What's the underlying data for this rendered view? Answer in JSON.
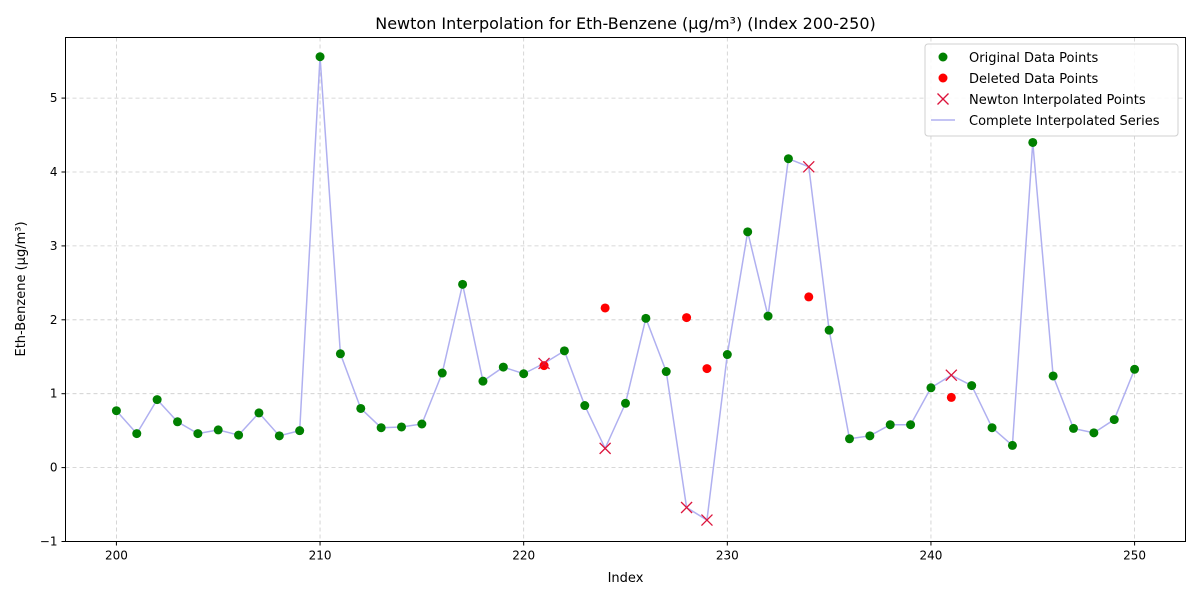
{
  "chart_data": {
    "type": "line",
    "title": "Newton Interpolation for Eth-Benzene (μg/m³) (Index 200-250)",
    "xlabel": "Index",
    "ylabel": "Eth-Benzene (μg/m³)",
    "xlim": [
      197.5,
      252.5
    ],
    "ylim": [
      -1.0,
      5.82
    ],
    "xticks": [
      200,
      210,
      220,
      230,
      240,
      250
    ],
    "yticks": [
      -1,
      0,
      1,
      2,
      3,
      4,
      5
    ],
    "grid": true,
    "legend_position": "top-right",
    "legend": [
      {
        "label": "Original Data Points",
        "marker": "circle",
        "color": "#008000"
      },
      {
        "label": "Deleted Data Points",
        "marker": "circle",
        "color": "#ff0000"
      },
      {
        "label": "Newton Interpolated Points",
        "marker": "x",
        "color": "#dc143c"
      },
      {
        "label": "Complete Interpolated Series",
        "marker": "line",
        "color": "#b0b0f0"
      }
    ],
    "series": [
      {
        "name": "Original Data Points",
        "points": [
          [
            200,
            0.77
          ],
          [
            201,
            0.46
          ],
          [
            202,
            0.92
          ],
          [
            203,
            0.62
          ],
          [
            204,
            0.46
          ],
          [
            205,
            0.51
          ],
          [
            206,
            0.44
          ],
          [
            207,
            0.74
          ],
          [
            208,
            0.43
          ],
          [
            209,
            0.5
          ],
          [
            210,
            5.56
          ],
          [
            211,
            1.54
          ],
          [
            212,
            0.8
          ],
          [
            213,
            0.54
          ],
          [
            214,
            0.55
          ],
          [
            215,
            0.59
          ],
          [
            216,
            1.28
          ],
          [
            217,
            2.48
          ],
          [
            218,
            1.17
          ],
          [
            219,
            1.36
          ],
          [
            220,
            1.27
          ],
          [
            222,
            1.58
          ],
          [
            223,
            0.84
          ],
          [
            225,
            0.87
          ],
          [
            226,
            2.02
          ],
          [
            227,
            1.3
          ],
          [
            230,
            1.53
          ],
          [
            231,
            3.19
          ],
          [
            232,
            2.05
          ],
          [
            233,
            4.18
          ],
          [
            235,
            1.86
          ],
          [
            236,
            0.39
          ],
          [
            237,
            0.43
          ],
          [
            238,
            0.58
          ],
          [
            239,
            0.58
          ],
          [
            240,
            1.08
          ],
          [
            242,
            1.11
          ],
          [
            243,
            0.54
          ],
          [
            244,
            0.3
          ],
          [
            245,
            4.4
          ],
          [
            246,
            1.24
          ],
          [
            247,
            0.53
          ],
          [
            248,
            0.47
          ],
          [
            249,
            0.65
          ],
          [
            250,
            1.33
          ]
        ]
      },
      {
        "name": "Deleted Data Points",
        "points": [
          [
            221,
            1.38
          ],
          [
            224,
            2.16
          ],
          [
            228,
            2.03
          ],
          [
            229,
            1.34
          ],
          [
            234,
            2.31
          ],
          [
            241,
            0.95
          ]
        ]
      },
      {
        "name": "Newton Interpolated Points",
        "points": [
          [
            221,
            1.41
          ],
          [
            224,
            0.26
          ],
          [
            228,
            -0.54
          ],
          [
            229,
            -0.71
          ],
          [
            234,
            4.07
          ],
          [
            241,
            1.25
          ]
        ]
      }
    ]
  }
}
